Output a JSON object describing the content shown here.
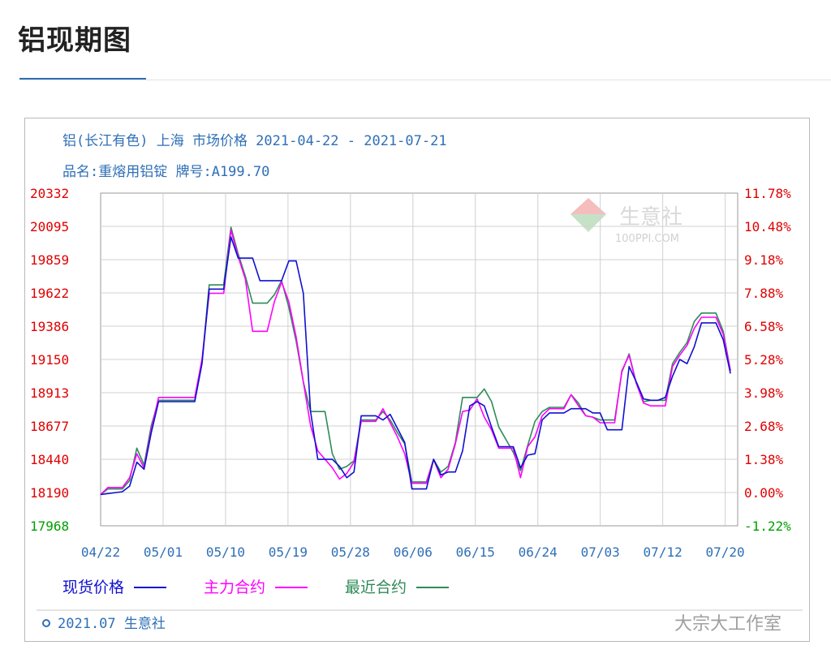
{
  "page": {
    "title": "铝现期图"
  },
  "chart_header": {
    "line1": "铝(长江有色) 上海 市场价格 2021-04-22 - 2021-07-21",
    "line2": "品名:重熔用铝锭 牌号:A199.70"
  },
  "footer": {
    "copyright": "2021.07 生意社"
  },
  "watermark": {
    "brand": "生意社",
    "url": "100PPI.COM",
    "overlay": "大宗大工作室"
  },
  "colors": {
    "spot": "#1010d0",
    "main": "#ff00ff",
    "recent": "#2e8b57",
    "left_axis": "#e00000",
    "right_axis": "#e00000",
    "bottom_tick": "#00a000",
    "grid": "#d0d0d0",
    "title": "#2f6fb6"
  },
  "chart_data": {
    "type": "line",
    "y_left_ticks": [
      "20332",
      "20095",
      "19859",
      "19622",
      "19386",
      "19150",
      "18913",
      "18677",
      "18440",
      "18190",
      "17968"
    ],
    "y_right_ticks": [
      "11.78%",
      "10.48%",
      "9.18%",
      "7.88%",
      "6.58%",
      "5.28%",
      "3.98%",
      "2.68%",
      "1.38%",
      "0.00%",
      "-1.22%"
    ],
    "x_ticks": [
      "04/22",
      "05/01",
      "05/10",
      "05/19",
      "05/28",
      "06/06",
      "06/15",
      "06/24",
      "07/03",
      "07/12",
      "07/20"
    ],
    "ylim": [
      17968,
      20332
    ],
    "legend": [
      {
        "key": "spot",
        "label": "现货价格"
      },
      {
        "key": "main",
        "label": "主力合约"
      },
      {
        "key": "recent",
        "label": "最近合约"
      }
    ],
    "grid": true,
    "series": [
      {
        "name": "现货价格",
        "key": "spot",
        "points": [
          [
            0,
            18190
          ],
          [
            3,
            18210
          ],
          [
            4,
            18250
          ],
          [
            5,
            18420
          ],
          [
            6,
            18370
          ],
          [
            7,
            18630
          ],
          [
            8,
            18850
          ],
          [
            13,
            18850
          ],
          [
            14,
            19120
          ],
          [
            15,
            19650
          ],
          [
            17,
            19650
          ],
          [
            18,
            20020
          ],
          [
            19,
            19870
          ],
          [
            21,
            19870
          ],
          [
            22,
            19710
          ],
          [
            25,
            19710
          ],
          [
            26,
            19850
          ],
          [
            27,
            19850
          ],
          [
            28,
            19620
          ],
          [
            29,
            18780
          ],
          [
            30,
            18440
          ],
          [
            32,
            18440
          ],
          [
            33,
            18390
          ],
          [
            34,
            18310
          ],
          [
            35,
            18350
          ],
          [
            36,
            18750
          ],
          [
            38,
            18750
          ],
          [
            39,
            18720
          ],
          [
            40,
            18760
          ],
          [
            42,
            18560
          ],
          [
            43,
            18230
          ],
          [
            45,
            18230
          ],
          [
            46,
            18440
          ],
          [
            47,
            18330
          ],
          [
            48,
            18350
          ],
          [
            49,
            18350
          ],
          [
            50,
            18500
          ],
          [
            51,
            18820
          ],
          [
            52,
            18850
          ],
          [
            53,
            18820
          ],
          [
            54,
            18670
          ],
          [
            55,
            18530
          ],
          [
            57,
            18530
          ],
          [
            58,
            18380
          ],
          [
            59,
            18470
          ],
          [
            60,
            18480
          ],
          [
            61,
            18720
          ],
          [
            62,
            18770
          ],
          [
            64,
            18770
          ],
          [
            65,
            18800
          ],
          [
            67,
            18800
          ],
          [
            68,
            18770
          ],
          [
            69,
            18770
          ],
          [
            70,
            18650
          ],
          [
            72,
            18650
          ],
          [
            73,
            19100
          ],
          [
            74,
            18990
          ],
          [
            75,
            18870
          ],
          [
            76,
            18860
          ],
          [
            77,
            18860
          ],
          [
            78,
            18880
          ],
          [
            79,
            19030
          ],
          [
            80,
            19150
          ],
          [
            81,
            19120
          ],
          [
            82,
            19240
          ],
          [
            83,
            19410
          ],
          [
            85,
            19410
          ],
          [
            86,
            19290
          ],
          [
            87,
            19050
          ]
        ]
      },
      {
        "name": "主力合约",
        "key": "main",
        "points": [
          [
            0,
            18190
          ],
          [
            1,
            18240
          ],
          [
            3,
            18240
          ],
          [
            4,
            18310
          ],
          [
            5,
            18480
          ],
          [
            6,
            18380
          ],
          [
            7,
            18650
          ],
          [
            8,
            18880
          ],
          [
            13,
            18880
          ],
          [
            14,
            19150
          ],
          [
            15,
            19620
          ],
          [
            17,
            19620
          ],
          [
            18,
            20070
          ],
          [
            19,
            19880
          ],
          [
            20,
            19720
          ],
          [
            21,
            19350
          ],
          [
            23,
            19350
          ],
          [
            24,
            19560
          ],
          [
            25,
            19700
          ],
          [
            26,
            19560
          ],
          [
            27,
            19310
          ],
          [
            28,
            18990
          ],
          [
            29,
            18680
          ],
          [
            30,
            18500
          ],
          [
            32,
            18380
          ],
          [
            33,
            18300
          ],
          [
            34,
            18340
          ],
          [
            35,
            18420
          ],
          [
            36,
            18710
          ],
          [
            38,
            18710
          ],
          [
            39,
            18800
          ],
          [
            40,
            18700
          ],
          [
            41,
            18600
          ],
          [
            42,
            18480
          ],
          [
            43,
            18270
          ],
          [
            45,
            18270
          ],
          [
            46,
            18440
          ],
          [
            47,
            18310
          ],
          [
            48,
            18370
          ],
          [
            49,
            18550
          ],
          [
            50,
            18780
          ],
          [
            51,
            18790
          ],
          [
            52,
            18870
          ],
          [
            53,
            18740
          ],
          [
            54,
            18650
          ],
          [
            55,
            18520
          ],
          [
            57,
            18520
          ],
          [
            58,
            18310
          ],
          [
            59,
            18530
          ],
          [
            60,
            18600
          ],
          [
            61,
            18750
          ],
          [
            62,
            18800
          ],
          [
            64,
            18800
          ],
          [
            65,
            18900
          ],
          [
            66,
            18820
          ],
          [
            67,
            18750
          ],
          [
            68,
            18740
          ],
          [
            69,
            18700
          ],
          [
            71,
            18700
          ],
          [
            72,
            19070
          ],
          [
            73,
            19180
          ],
          [
            74,
            18980
          ],
          [
            75,
            18840
          ],
          [
            76,
            18820
          ],
          [
            78,
            18820
          ],
          [
            79,
            19100
          ],
          [
            80,
            19180
          ],
          [
            81,
            19250
          ],
          [
            82,
            19370
          ],
          [
            83,
            19450
          ],
          [
            85,
            19450
          ],
          [
            86,
            19330
          ],
          [
            87,
            19070
          ]
        ]
      },
      {
        "name": "最近合约",
        "key": "recent",
        "points": [
          [
            0,
            18190
          ],
          [
            1,
            18230
          ],
          [
            3,
            18230
          ],
          [
            4,
            18290
          ],
          [
            5,
            18520
          ],
          [
            6,
            18400
          ],
          [
            7,
            18680
          ],
          [
            8,
            18860
          ],
          [
            13,
            18860
          ],
          [
            14,
            19130
          ],
          [
            15,
            19680
          ],
          [
            17,
            19680
          ],
          [
            18,
            20090
          ],
          [
            19,
            19900
          ],
          [
            20,
            19740
          ],
          [
            21,
            19550
          ],
          [
            23,
            19550
          ],
          [
            24,
            19610
          ],
          [
            25,
            19710
          ],
          [
            26,
            19520
          ],
          [
            27,
            19280
          ],
          [
            28,
            18990
          ],
          [
            29,
            18780
          ],
          [
            31,
            18780
          ],
          [
            32,
            18480
          ],
          [
            33,
            18370
          ],
          [
            34,
            18390
          ],
          [
            35,
            18430
          ],
          [
            36,
            18720
          ],
          [
            38,
            18720
          ],
          [
            39,
            18780
          ],
          [
            40,
            18720
          ],
          [
            41,
            18630
          ],
          [
            42,
            18550
          ],
          [
            43,
            18280
          ],
          [
            45,
            18280
          ],
          [
            46,
            18440
          ],
          [
            47,
            18350
          ],
          [
            48,
            18390
          ],
          [
            49,
            18560
          ],
          [
            50,
            18880
          ],
          [
            52,
            18880
          ],
          [
            53,
            18940
          ],
          [
            54,
            18850
          ],
          [
            55,
            18670
          ],
          [
            57,
            18490
          ],
          [
            58,
            18360
          ],
          [
            59,
            18540
          ],
          [
            60,
            18710
          ],
          [
            61,
            18780
          ],
          [
            62,
            18810
          ],
          [
            64,
            18810
          ],
          [
            65,
            18900
          ],
          [
            66,
            18840
          ],
          [
            67,
            18750
          ],
          [
            68,
            18740
          ],
          [
            69,
            18720
          ],
          [
            71,
            18720
          ],
          [
            72,
            19060
          ],
          [
            73,
            19190
          ],
          [
            74,
            18980
          ],
          [
            75,
            18850
          ],
          [
            76,
            18860
          ],
          [
            78,
            18860
          ],
          [
            79,
            19120
          ],
          [
            80,
            19200
          ],
          [
            81,
            19270
          ],
          [
            82,
            19420
          ],
          [
            83,
            19480
          ],
          [
            85,
            19480
          ],
          [
            86,
            19350
          ],
          [
            87,
            19070
          ]
        ]
      }
    ]
  }
}
